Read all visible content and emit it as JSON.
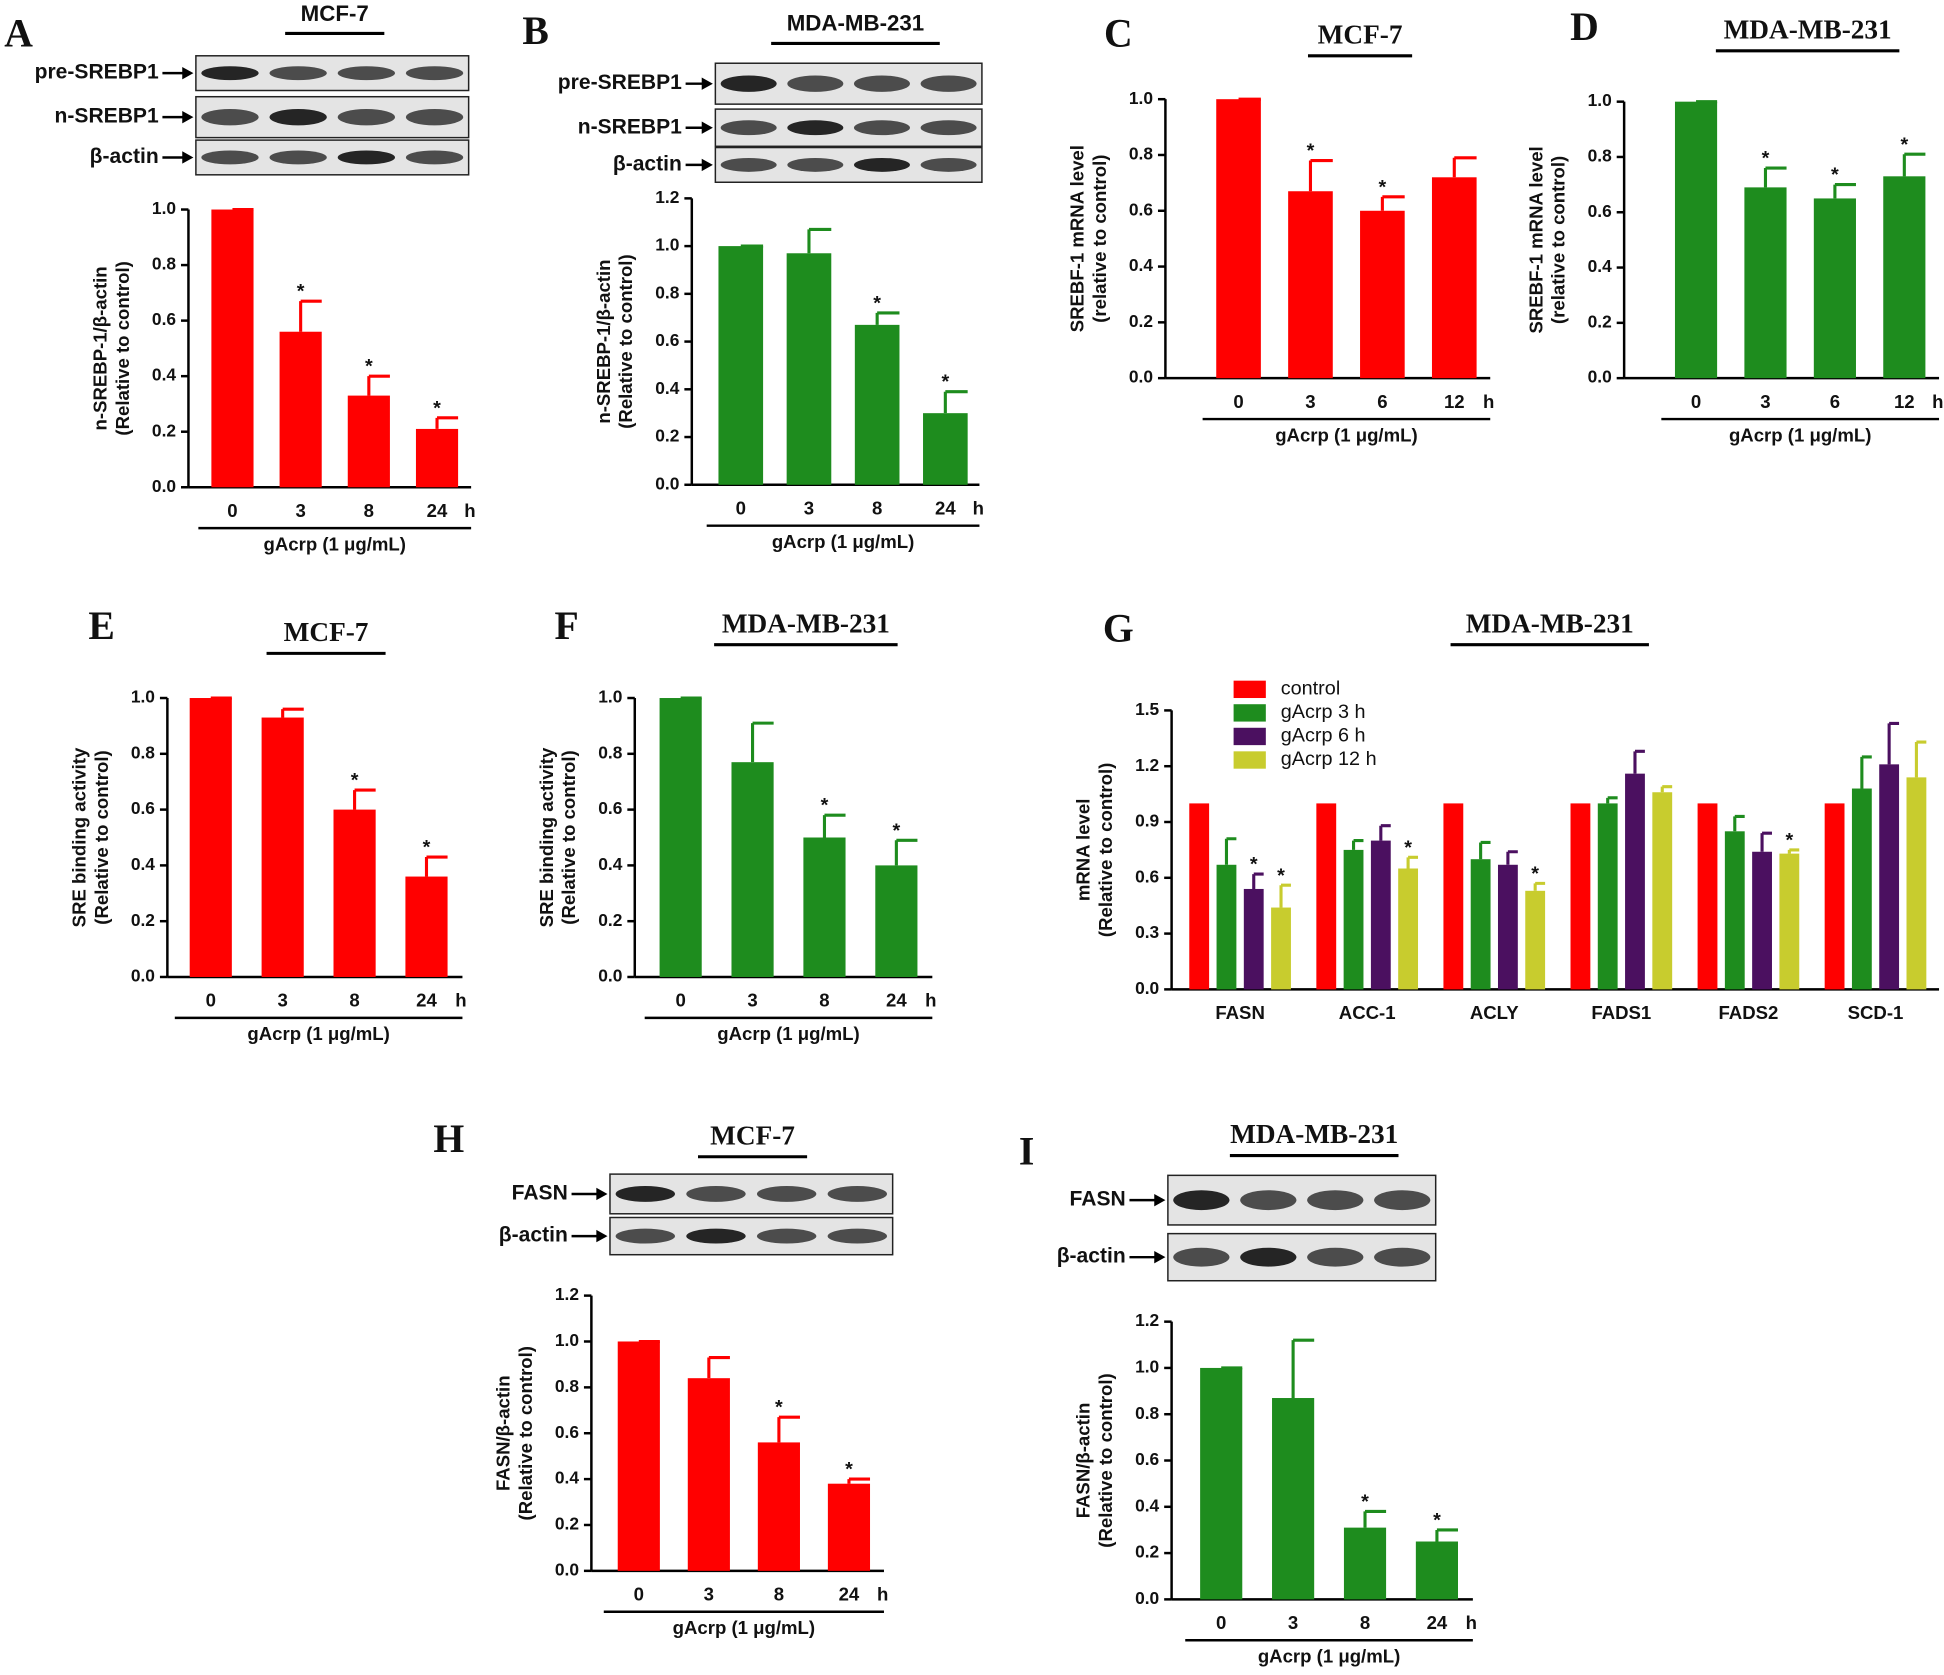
{
  "chart_data": [
    {
      "type": "bar",
      "panel": "A",
      "title": "MCF-7",
      "blot_labels": [
        "pre-SREBP1",
        "n-SREBP1",
        "β-actin"
      ],
      "ylabel": [
        "n-SREBP-1/β-actin",
        "(Relative to control)"
      ],
      "xlabel": "gAcrp (1 μg/mL)",
      "x_unit": "h",
      "categories": [
        "0",
        "3",
        "8",
        "24"
      ],
      "values": [
        1,
        0.56,
        0.33,
        0.21
      ],
      "errors": [
        0,
        0.11,
        0.07,
        0.04
      ],
      "markers": [
        null,
        "*",
        "*",
        "*"
      ],
      "color": "#ff0000",
      "ylim": [
        0,
        1
      ],
      "yticks": [
        {
          "value": 0,
          "label": "0.0"
        },
        0.2,
        0.4,
        0.6,
        0.8,
        {
          "value": 1,
          "label": "1.0"
        }
      ]
    },
    {
      "type": "bar",
      "panel": "B",
      "title": "MDA-MB-231",
      "blot_labels": [
        "pre-SREBP1",
        "n-SREBP1",
        "β-actin"
      ],
      "ylabel": [
        "n-SREBP-1/β-actin",
        "(Relative to control)"
      ],
      "xlabel": "gAcrp (1 μg/mL)",
      "x_unit": "h",
      "categories": [
        "0",
        "3",
        "8",
        "24"
      ],
      "values": [
        1,
        0.97,
        0.67,
        0.3
      ],
      "errors": [
        0,
        0.1,
        0.05,
        0.09
      ],
      "markers": [
        null,
        null,
        "*",
        "*"
      ],
      "color": "#1e8c1e",
      "ylim": [
        0,
        1.2
      ],
      "yticks": [
        {
          "value": 0,
          "label": "0.0"
        },
        0.2,
        0.4,
        0.6,
        0.8,
        {
          "value": 1,
          "label": "1.0"
        },
        1.2
      ]
    },
    {
      "type": "bar",
      "panel": "C",
      "title": "MCF-7",
      "ylabel": [
        "SREBF-1 mRNA level",
        "(relative to control)"
      ],
      "xlabel": "gAcrp (1 μg/mL)",
      "x_unit": "h",
      "categories": [
        "0",
        "3",
        "6",
        "12"
      ],
      "values": [
        1,
        0.67,
        0.6,
        0.72
      ],
      "errors": [
        0,
        0.11,
        0.05,
        0.07
      ],
      "markers": [
        null,
        "*",
        "*",
        null
      ],
      "color": "#ff0000",
      "ylim": [
        0,
        1
      ],
      "yticks": [
        {
          "value": 0,
          "label": "0.0"
        },
        0.2,
        0.4,
        0.6,
        0.8,
        {
          "value": 1,
          "label": "1.0"
        }
      ]
    },
    {
      "type": "bar",
      "panel": "D",
      "title": "MDA-MB-231",
      "ylabel": [
        "SREBF-1 mRNA level",
        "(relative to control)"
      ],
      "xlabel": "gAcrp (1 μg/mL)",
      "x_unit": "h",
      "categories": [
        "0",
        "3",
        "6",
        "12"
      ],
      "values": [
        1,
        0.69,
        0.65,
        0.73
      ],
      "errors": [
        0,
        0.07,
        0.05,
        0.08
      ],
      "markers": [
        null,
        "*",
        "*",
        "*"
      ],
      "color": "#1e8c1e",
      "ylim": [
        0,
        1
      ],
      "yticks": [
        {
          "value": 0,
          "label": "0.0"
        },
        0.2,
        0.4,
        0.6,
        0.8,
        {
          "value": 1,
          "label": "1.0"
        }
      ]
    },
    {
      "type": "bar",
      "panel": "E",
      "title": "MCF-7",
      "ylabel": [
        "SRE binding activity",
        "(Relative to control)"
      ],
      "xlabel": "gAcrp (1 μg/mL)",
      "x_unit": "h",
      "categories": [
        "0",
        "3",
        "8",
        "24"
      ],
      "values": [
        1,
        0.93,
        0.6,
        0.36
      ],
      "errors": [
        0,
        0.03,
        0.07,
        0.07
      ],
      "markers": [
        null,
        null,
        "*",
        "*"
      ],
      "color": "#ff0000",
      "ylim": [
        0,
        1
      ],
      "yticks": [
        {
          "value": 0,
          "label": "0.0"
        },
        0.2,
        0.4,
        0.6,
        0.8,
        {
          "value": 1,
          "label": "1.0"
        }
      ]
    },
    {
      "type": "bar",
      "panel": "F",
      "title": "MDA-MB-231",
      "ylabel": [
        "SRE binding activity",
        "(Relative to control)"
      ],
      "xlabel": "gAcrp (1 μg/mL)",
      "x_unit": "h",
      "categories": [
        "0",
        "3",
        "8",
        "24"
      ],
      "values": [
        1,
        0.77,
        0.5,
        0.4
      ],
      "errors": [
        0,
        0.14,
        0.08,
        0.09
      ],
      "markers": [
        null,
        null,
        "*",
        "*"
      ],
      "color": "#1e8c1e",
      "ylim": [
        0,
        1
      ],
      "yticks": [
        {
          "value": 0,
          "label": "0.0"
        },
        0.2,
        0.4,
        0.6,
        0.8,
        {
          "value": 1,
          "label": "1.0"
        }
      ]
    },
    {
      "type": "grouped_bar",
      "panel": "G",
      "title": "MDA-MB-231",
      "ylabel": [
        "mRNA level",
        "(Relative to control)"
      ],
      "categories": [
        "FASN",
        "ACC-1",
        "ACLY",
        "FADS1",
        "FADS2",
        "SCD-1"
      ],
      "series": [
        {
          "name": "control",
          "color": "#ff0000",
          "values": [
            1,
            1,
            1,
            1,
            1,
            1
          ]
        },
        {
          "name": "gAcrp 3 h",
          "color": "#1e8c1e",
          "values": [
            0.67,
            0.75,
            0.7,
            1.0,
            0.85,
            1.08
          ],
          "errors": [
            0.14,
            0.05,
            0.09,
            0.03,
            0.08,
            0.17
          ],
          "markers": [
            null,
            null,
            null,
            null,
            null,
            null
          ]
        },
        {
          "name": "gAcrp 6 h",
          "color": "#4b1060",
          "values": [
            0.54,
            0.8,
            0.67,
            1.16,
            0.74,
            1.21
          ],
          "errors": [
            0.08,
            0.08,
            0.07,
            0.12,
            0.1,
            0.22
          ],
          "markers": [
            "*",
            null,
            null,
            null,
            null,
            null
          ]
        },
        {
          "name": "gAcrp 12 h",
          "color": "#c8cc2e",
          "values": [
            0.44,
            0.65,
            0.53,
            1.06,
            0.73,
            1.14
          ],
          "errors": [
            0.12,
            0.06,
            0.04,
            0.03,
            0.02,
            0.19
          ],
          "markers": [
            "*",
            "*",
            "*",
            null,
            "*",
            null
          ]
        }
      ],
      "ylim": [
        0,
        1.5
      ],
      "yticks": [
        {
          "value": 0,
          "label": "0.0"
        },
        0.3,
        0.6,
        0.9,
        1.2,
        1.5
      ]
    },
    {
      "type": "bar",
      "panel": "H",
      "title": "MCF-7",
      "blot_labels": [
        "FASN",
        "β-actin"
      ],
      "ylabel": [
        "FASN/β-actin",
        "(Relative to control)"
      ],
      "xlabel": "gAcrp (1 μg/mL)",
      "x_unit": "h",
      "categories": [
        "0",
        "3",
        "8",
        "24"
      ],
      "values": [
        1,
        0.84,
        0.56,
        0.38
      ],
      "errors": [
        0,
        0.09,
        0.11,
        0.02
      ],
      "markers": [
        null,
        null,
        "*",
        "*"
      ],
      "color": "#ff0000",
      "ylim": [
        0,
        1.2
      ],
      "yticks": [
        {
          "value": 0,
          "label": "0.0"
        },
        0.2,
        0.4,
        0.6,
        0.8,
        {
          "value": 1,
          "label": "1.0"
        },
        1.2
      ]
    },
    {
      "type": "bar",
      "panel": "I",
      "title": "MDA-MB-231",
      "blot_labels": [
        "FASN",
        "β-actin"
      ],
      "ylabel": [
        "FASN/β-actin",
        "(Relative to control)"
      ],
      "xlabel": "gAcrp (1 μg/mL)",
      "x_unit": "h",
      "categories": [
        "0",
        "3",
        "8",
        "24"
      ],
      "values": [
        1,
        0.87,
        0.31,
        0.25
      ],
      "errors": [
        0,
        0.25,
        0.07,
        0.05
      ],
      "markers": [
        null,
        null,
        "*",
        "*"
      ],
      "color": "#1e8c1e",
      "ylim": [
        0,
        1.2
      ],
      "yticks": [
        {
          "value": 0,
          "label": "0.0"
        },
        0.2,
        0.4,
        0.6,
        0.8,
        {
          "value": 1,
          "label": "1.0"
        },
        1.2
      ]
    }
  ]
}
